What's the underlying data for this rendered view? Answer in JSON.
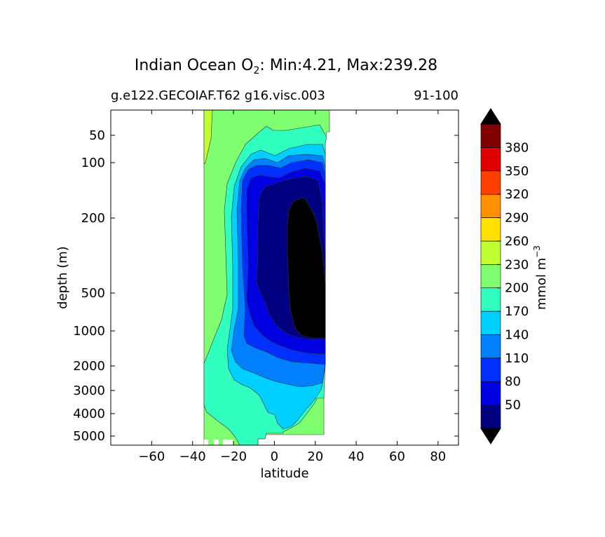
{
  "chart_data": {
    "type": "contour",
    "title_main": "Indian Ocean O",
    "title_sub_symbol": "2",
    "title_rest": ": Min:4.21, Max:239.28",
    "subtitle_left": "g.e122.GECOIAF.T62 g16.visc.003",
    "subtitle_right": "91-100",
    "xlabel": "latitude",
    "ylabel": "depth (m)",
    "xlim": [
      -80,
      90
    ],
    "x_ticks": [
      -60,
      -40,
      -20,
      0,
      20,
      40,
      60,
      80
    ],
    "x_tick_labels": [
      "−60",
      "−40",
      "−20",
      "0",
      "20",
      "40",
      "60",
      "80"
    ],
    "y_scale": "nonlinear (depth compressed)",
    "y_ticks": [
      50,
      100,
      200,
      500,
      1000,
      2000,
      3000,
      4000,
      5000
    ],
    "y_tick_labels": [
      "50",
      "100",
      "200",
      "500",
      "1000",
      "2000",
      "3000",
      "4000",
      "5000"
    ],
    "colorbar": {
      "label": "mmol m",
      "label_exponent": "−3",
      "levels": [
        50,
        80,
        110,
        140,
        170,
        200,
        230,
        260,
        290,
        320,
        350,
        380
      ],
      "level_labels": [
        "50",
        "80",
        "110",
        "140",
        "170",
        "200",
        "230",
        "260",
        "290",
        "320",
        "350",
        "380"
      ],
      "colors": [
        "#000080",
        "#0000e0",
        "#0030ff",
        "#0080ff",
        "#00d0ff",
        "#30ffc0",
        "#80ff70",
        "#c0ff30",
        "#ffe000",
        "#ff9000",
        "#ff4000",
        "#e00000",
        "#800000"
      ],
      "extend_low_color": "#000000",
      "extend_high_color": "#000000"
    }
  }
}
